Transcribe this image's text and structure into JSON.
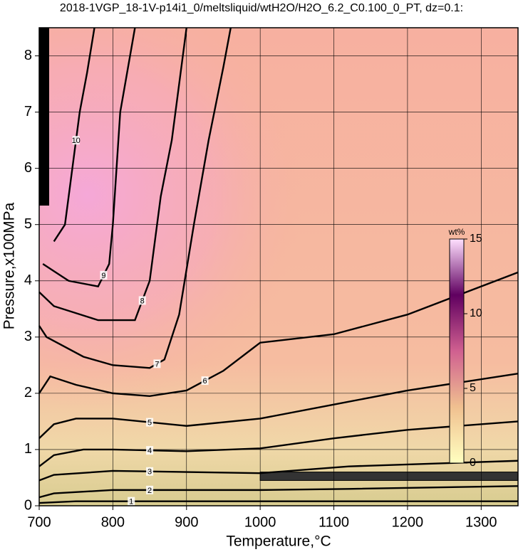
{
  "chart_data": {
    "type": "contour",
    "title": "2018-1VGP_18-1V-p14i1_0/meltsliquid/wtH2O/H2O_6.2_C0.100_0_PT, dz=0.1:",
    "x_label": "Temperature,°C",
    "y_label": "Pressure,x100MPa",
    "xlim": [
      700,
      1350
    ],
    "ylim": [
      0,
      8.5
    ],
    "xticks": [
      700,
      800,
      900,
      1000,
      1100,
      1200,
      1300
    ],
    "yticks": [
      0,
      1,
      2,
      3,
      4,
      5,
      6,
      7,
      8
    ],
    "grid": true,
    "colorbar": {
      "label": "wt%",
      "clim": [
        0,
        15
      ],
      "ticks": [
        0,
        5,
        10,
        15
      ],
      "colors": [
        "#ffffc0",
        "#f0c090",
        "#d06090",
        "#600060",
        "#ffe0ff"
      ]
    },
    "contours": [
      {
        "level": 1,
        "x": [
          700,
          750,
          900,
          1100,
          1350
        ],
        "y": [
          0.05,
          0.08,
          0.08,
          0.08,
          0.08
        ]
      },
      {
        "level": 2,
        "x": [
          700,
          720,
          800,
          900,
          1000,
          1120,
          1350
        ],
        "y": [
          0.15,
          0.22,
          0.28,
          0.28,
          0.28,
          0.3,
          0.35
        ]
      },
      {
        "level": 3,
        "x": [
          700,
          720,
          800,
          900,
          1000,
          1120,
          1350
        ],
        "y": [
          0.45,
          0.55,
          0.62,
          0.6,
          0.58,
          0.7,
          0.8
        ]
      },
      {
        "level": 4,
        "x": [
          700,
          720,
          760,
          800,
          900,
          1000,
          1100,
          1200,
          1350
        ],
        "y": [
          0.7,
          0.9,
          1.0,
          1.0,
          0.97,
          1.02,
          1.2,
          1.35,
          1.5
        ]
      },
      {
        "level": 5,
        "x": [
          700,
          720,
          750,
          800,
          900,
          1000,
          1100,
          1200,
          1350
        ],
        "y": [
          1.2,
          1.45,
          1.55,
          1.55,
          1.42,
          1.55,
          1.8,
          2.05,
          2.35
        ]
      },
      {
        "level": 6,
        "x": [
          700,
          715,
          750,
          800,
          850,
          900,
          950,
          990,
          1000,
          1100,
          1200,
          1350
        ],
        "y": [
          2.0,
          2.3,
          2.15,
          2.0,
          1.95,
          2.05,
          2.4,
          2.8,
          2.9,
          3.05,
          3.4,
          4.15
        ]
      },
      {
        "level": 7,
        "x": [
          700,
          710,
          760,
          800,
          850,
          870,
          890,
          910,
          930,
          950,
          960
        ],
        "y": [
          3.2,
          3.0,
          2.65,
          2.5,
          2.45,
          2.6,
          3.4,
          5.0,
          6.5,
          7.8,
          8.5
        ]
      },
      {
        "level": 8,
        "x": [
          700,
          720,
          780,
          830,
          850,
          865,
          880,
          900
        ],
        "y": [
          3.8,
          3.55,
          3.3,
          3.3,
          4.0,
          5.5,
          6.5,
          8.5
        ]
      },
      {
        "level": 9,
        "x": [
          705,
          740,
          780,
          795,
          800,
          810,
          830
        ],
        "y": [
          4.3,
          4.0,
          3.9,
          4.3,
          5.0,
          7.0,
          8.5
        ]
      },
      {
        "level": 10,
        "x": [
          720,
          735,
          745,
          755,
          765,
          775
        ],
        "y": [
          4.7,
          5.0,
          6.0,
          7.0,
          7.7,
          8.5
        ]
      }
    ]
  }
}
